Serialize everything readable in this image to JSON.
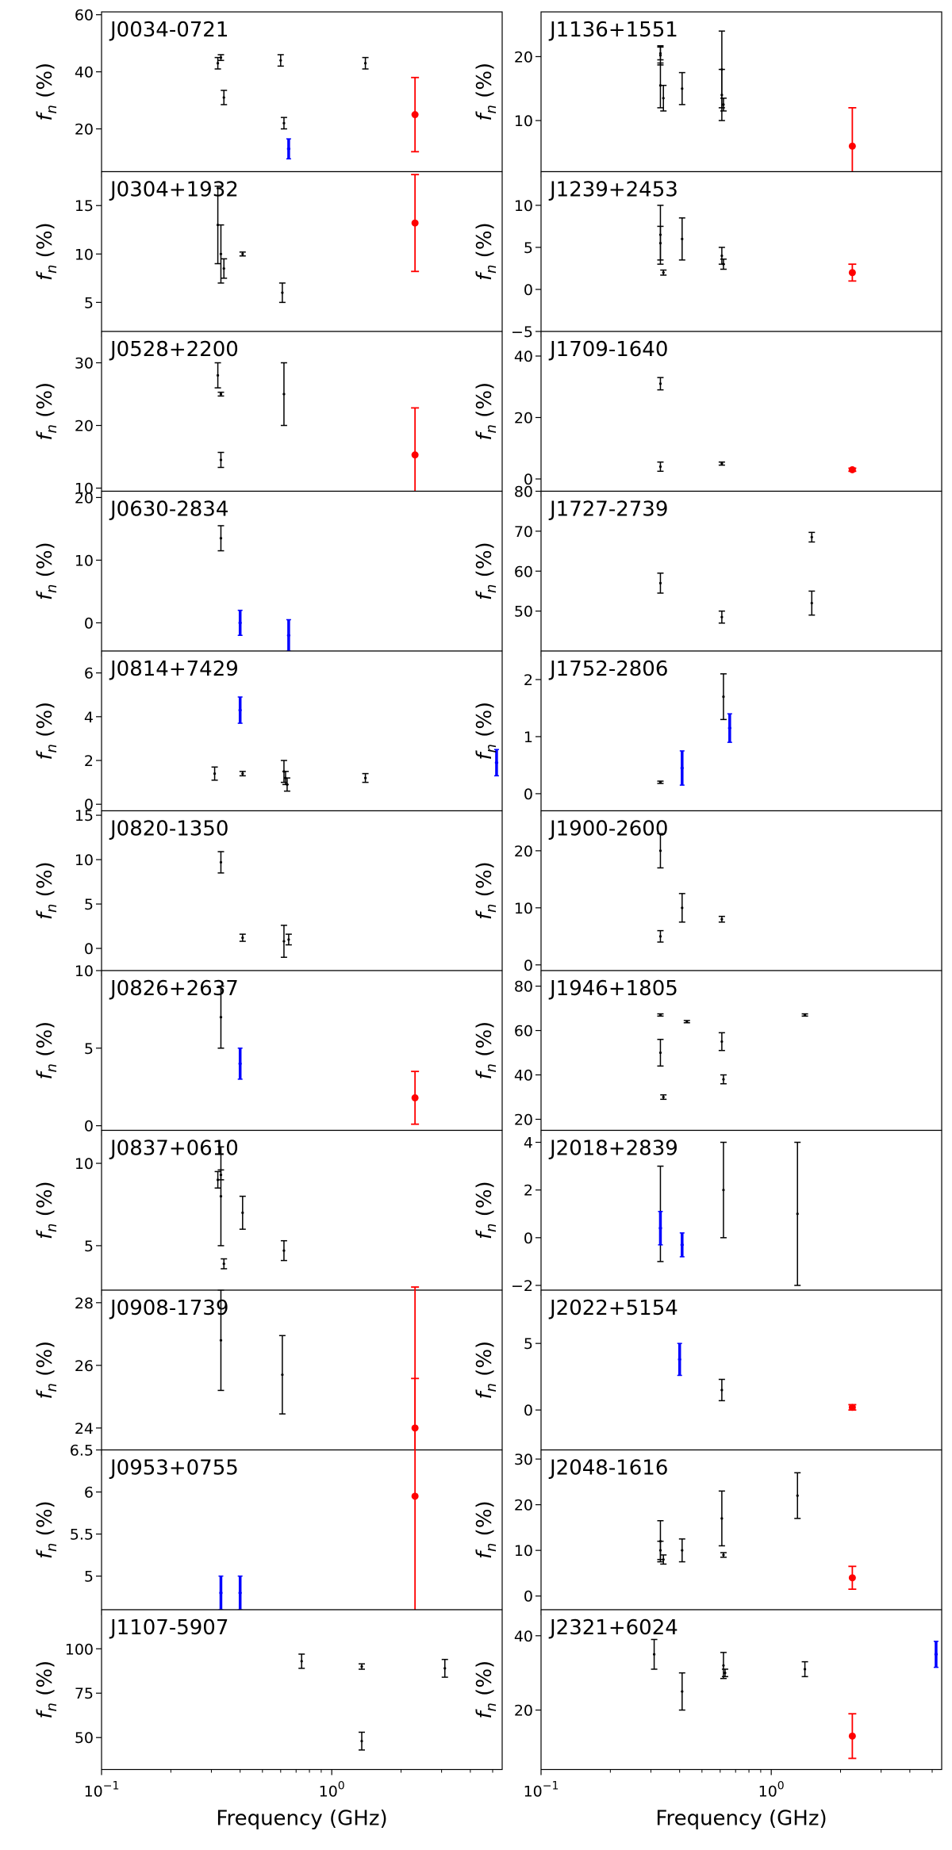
{
  "figure": {
    "y_axis_label": "f_n (%)",
    "x_axis_label": "Frequency (GHz)",
    "x_ticks": [
      0.1,
      1.0
    ],
    "x_tick_labels": [
      [
        "10",
        "−1"
      ],
      [
        "10",
        "0"
      ]
    ],
    "colors": {
      "measured": "#000000",
      "lower": "#0000ff",
      "estimate": "#ff0000"
    }
  },
  "chart_data": [
    {
      "type": "scatter",
      "panel": "J0034-0721",
      "column": 0,
      "xlim": [
        0.1,
        5.5
      ],
      "xscale": "log",
      "ylim": [
        5,
        61
      ],
      "yticks": [
        20,
        40,
        60
      ],
      "points": [
        [
          0.32,
          43,
          2,
          "black"
        ],
        [
          0.33,
          45,
          1,
          "black"
        ],
        [
          0.34,
          31,
          2.5,
          "black"
        ],
        [
          0.6,
          44,
          2,
          "black"
        ],
        [
          0.62,
          22,
          2,
          "black"
        ],
        [
          1.4,
          43,
          2,
          "black"
        ],
        [
          0.65,
          13,
          3.5,
          "blue"
        ],
        [
          2.3,
          25,
          13,
          "red"
        ]
      ]
    },
    {
      "type": "scatter",
      "panel": "J1136+1551",
      "column": 1,
      "xlim": [
        0.1,
        5.5
      ],
      "xscale": "log",
      "ylim": [
        2,
        27
      ],
      "yticks": [
        10,
        20
      ],
      "points": [
        [
          0.33,
          20.5,
          1,
          "black"
        ],
        [
          0.33,
          20.2,
          1.5,
          "black"
        ],
        [
          0.33,
          15.5,
          3.5,
          "black"
        ],
        [
          0.34,
          13.5,
          2,
          "black"
        ],
        [
          0.41,
          15,
          2.5,
          "black"
        ],
        [
          0.61,
          18,
          6,
          "black"
        ],
        [
          0.61,
          14,
          4,
          "black"
        ],
        [
          0.62,
          12.5,
          1,
          "black"
        ],
        [
          2.25,
          6,
          6,
          "red"
        ]
      ]
    },
    {
      "type": "scatter",
      "panel": "J0304+1932",
      "column": 0,
      "xlim": [
        0.1,
        5.5
      ],
      "xscale": "log",
      "ylim": [
        2,
        18.5
      ],
      "yticks": [
        5,
        10,
        15
      ],
      "points": [
        [
          0.32,
          13,
          4,
          "black"
        ],
        [
          0.33,
          10,
          3,
          "black"
        ],
        [
          0.34,
          8.5,
          1,
          "black"
        ],
        [
          0.41,
          10,
          0.2,
          "black"
        ],
        [
          0.61,
          6,
          1,
          "black"
        ],
        [
          2.3,
          13.2,
          5,
          "red"
        ]
      ]
    },
    {
      "type": "scatter",
      "panel": "J1239+2453",
      "column": 1,
      "xlim": [
        0.1,
        5.5
      ],
      "xscale": "log",
      "ylim": [
        -5,
        14
      ],
      "yticks": [
        -5,
        0,
        5,
        10
      ],
      "points": [
        [
          0.33,
          6.5,
          3.5,
          "black"
        ],
        [
          0.33,
          5.5,
          2,
          "black"
        ],
        [
          0.34,
          2,
          0.3,
          "black"
        ],
        [
          0.41,
          6,
          2.5,
          "black"
        ],
        [
          0.61,
          4,
          1,
          "black"
        ],
        [
          0.62,
          3,
          0.6,
          "black"
        ],
        [
          2.25,
          2,
          1,
          "red"
        ]
      ]
    },
    {
      "type": "scatter",
      "panel": "J0528+2200",
      "column": 0,
      "xlim": [
        0.1,
        5.5
      ],
      "xscale": "log",
      "ylim": [
        9.5,
        35
      ],
      "yticks": [
        10,
        20,
        30
      ],
      "points": [
        [
          0.32,
          28,
          2,
          "black"
        ],
        [
          0.33,
          25,
          0.3,
          "black"
        ],
        [
          0.33,
          14.5,
          1.2,
          "black"
        ],
        [
          0.62,
          25,
          5,
          "black"
        ],
        [
          2.3,
          15.3,
          7.5,
          "red"
        ]
      ]
    },
    {
      "type": "scatter",
      "panel": "J1709-1640",
      "column": 1,
      "xlim": [
        0.1,
        5.5
      ],
      "xscale": "log",
      "ylim": [
        -4,
        48
      ],
      "yticks": [
        0,
        20,
        40
      ],
      "points": [
        [
          0.33,
          31,
          2,
          "black"
        ],
        [
          0.33,
          4,
          1.5,
          "black"
        ],
        [
          0.61,
          5,
          0.5,
          "black"
        ],
        [
          2.25,
          3,
          0.5,
          "red"
        ]
      ]
    },
    {
      "type": "scatter",
      "panel": "J0630-2834",
      "column": 0,
      "xlim": [
        0.1,
        5.5
      ],
      "xscale": "log",
      "ylim": [
        -4.5,
        21
      ],
      "yticks": [
        0,
        10,
        20
      ],
      "points": [
        [
          0.33,
          13.5,
          2,
          "black"
        ],
        [
          0.4,
          0,
          2,
          "blue"
        ],
        [
          0.65,
          -2,
          2.5,
          "blue"
        ]
      ]
    },
    {
      "type": "scatter",
      "panel": "J1727-2739",
      "column": 1,
      "xlim": [
        0.1,
        5.5
      ],
      "xscale": "log",
      "ylim": [
        40,
        80
      ],
      "yticks": [
        50,
        60,
        70,
        80
      ],
      "points": [
        [
          0.33,
          57,
          2.5,
          "black"
        ],
        [
          0.61,
          48.5,
          1.5,
          "black"
        ],
        [
          1.5,
          68.5,
          1.2,
          "black"
        ],
        [
          1.5,
          52,
          3,
          "black"
        ]
      ]
    },
    {
      "type": "scatter",
      "panel": "J0814+7429",
      "column": 0,
      "xlim": [
        0.1,
        5.5
      ],
      "xscale": "log",
      "ylim": [
        -0.3,
        7
      ],
      "yticks": [
        0,
        2,
        4,
        6
      ],
      "points": [
        [
          0.31,
          1.4,
          0.3,
          "black"
        ],
        [
          0.41,
          1.4,
          0.1,
          "black"
        ],
        [
          0.62,
          1.5,
          0.5,
          "black"
        ],
        [
          0.63,
          1.2,
          0.3,
          "black"
        ],
        [
          0.64,
          0.9,
          0.3,
          "black"
        ],
        [
          1.4,
          1.2,
          0.2,
          "black"
        ],
        [
          0.4,
          4.3,
          0.6,
          "blue"
        ],
        [
          5.2,
          1.9,
          0.6,
          "blue"
        ]
      ]
    },
    {
      "type": "scatter",
      "panel": "J1752-2806",
      "column": 1,
      "xlim": [
        0.1,
        5.5
      ],
      "xscale": "log",
      "ylim": [
        -0.3,
        2.5
      ],
      "yticks": [
        0,
        1,
        2
      ],
      "points": [
        [
          0.33,
          0.2,
          0.02,
          "black"
        ],
        [
          0.62,
          1.7,
          0.4,
          "black"
        ],
        [
          0.41,
          0.45,
          0.3,
          "blue"
        ],
        [
          0.66,
          1.15,
          0.25,
          "blue"
        ]
      ]
    },
    {
      "type": "scatter",
      "panel": "J0820-1350",
      "column": 0,
      "xlim": [
        0.1,
        5.5
      ],
      "xscale": "log",
      "ylim": [
        -2.5,
        15.5
      ],
      "yticks": [
        0,
        5,
        10,
        15
      ],
      "points": [
        [
          0.33,
          9.7,
          1.2,
          "black"
        ],
        [
          0.41,
          1.2,
          0.4,
          "black"
        ],
        [
          0.62,
          0.8,
          1.8,
          "black"
        ],
        [
          0.65,
          1,
          0.6,
          "black"
        ]
      ]
    },
    {
      "type": "scatter",
      "panel": "J1900-2600",
      "column": 1,
      "xlim": [
        0.1,
        5.5
      ],
      "xscale": "log",
      "ylim": [
        -1,
        27
      ],
      "yticks": [
        0,
        10,
        20
      ],
      "points": [
        [
          0.33,
          20,
          3,
          "black"
        ],
        [
          0.33,
          5,
          1,
          "black"
        ],
        [
          0.41,
          10,
          2.5,
          "black"
        ],
        [
          0.61,
          8,
          0.5,
          "black"
        ]
      ]
    },
    {
      "type": "scatter",
      "panel": "J0826+2637",
      "column": 0,
      "xlim": [
        0.1,
        5.5
      ],
      "xscale": "log",
      "ylim": [
        -0.3,
        10
      ],
      "yticks": [
        0,
        5,
        10
      ],
      "points": [
        [
          0.33,
          7,
          2,
          "black"
        ],
        [
          0.4,
          4,
          1,
          "blue"
        ],
        [
          2.3,
          1.8,
          1.7,
          "red"
        ]
      ]
    },
    {
      "type": "scatter",
      "panel": "J1946+1805",
      "column": 1,
      "xlim": [
        0.1,
        5.5
      ],
      "xscale": "log",
      "ylim": [
        15,
        87
      ],
      "yticks": [
        20,
        40,
        60,
        80
      ],
      "points": [
        [
          0.33,
          67,
          0.5,
          "black"
        ],
        [
          0.33,
          50,
          6,
          "black"
        ],
        [
          0.34,
          30,
          1,
          "black"
        ],
        [
          0.43,
          64,
          0.5,
          "black"
        ],
        [
          0.61,
          55,
          4,
          "black"
        ],
        [
          0.62,
          38,
          2,
          "black"
        ],
        [
          1.4,
          67,
          0.5,
          "black"
        ]
      ]
    },
    {
      "type": "scatter",
      "panel": "J0837+0610",
      "column": 0,
      "xlim": [
        0.1,
        5.5
      ],
      "xscale": "log",
      "ylim": [
        2.3,
        12
      ],
      "yticks": [
        5,
        10
      ],
      "points": [
        [
          0.32,
          9,
          0.5,
          "black"
        ],
        [
          0.33,
          8,
          3,
          "black"
        ],
        [
          0.33,
          9.3,
          0.3,
          "black"
        ],
        [
          0.34,
          3.9,
          0.3,
          "black"
        ],
        [
          0.41,
          7,
          1,
          "black"
        ],
        [
          0.62,
          4.7,
          0.6,
          "black"
        ]
      ]
    },
    {
      "type": "scatter",
      "panel": "J2018+2839",
      "column": 1,
      "xlim": [
        0.1,
        5.5
      ],
      "xscale": "log",
      "ylim": [
        -2.2,
        4.5
      ],
      "yticks": [
        -2,
        0,
        2,
        4
      ],
      "points": [
        [
          0.33,
          1,
          2,
          "black"
        ],
        [
          0.62,
          2,
          2,
          "black"
        ],
        [
          1.3,
          1,
          3,
          "black"
        ],
        [
          0.33,
          0.4,
          0.7,
          "blue"
        ],
        [
          0.41,
          -0.3,
          0.5,
          "blue"
        ]
      ]
    },
    {
      "type": "scatter",
      "panel": "J0908-1739",
      "column": 0,
      "xlim": [
        0.1,
        5.5
      ],
      "xscale": "log",
      "ylim": [
        23.3,
        28.4
      ],
      "yticks": [
        24,
        26,
        28
      ],
      "points": [
        [
          0.33,
          26.8,
          1.6,
          "black"
        ],
        [
          0.61,
          25.7,
          1.25,
          "black"
        ],
        [
          2.3,
          24,
          4.5,
          "red"
        ]
      ]
    },
    {
      "type": "scatter",
      "panel": "J2022+5154",
      "column": 1,
      "xlim": [
        0.1,
        5.5
      ],
      "xscale": "log",
      "ylim": [
        -3,
        9
      ],
      "yticks": [
        0,
        5
      ],
      "points": [
        [
          0.61,
          1.5,
          0.8,
          "black"
        ],
        [
          0.4,
          3.8,
          1.2,
          "blue"
        ],
        [
          2.25,
          0.2,
          0.2,
          "red"
        ]
      ]
    },
    {
      "type": "scatter",
      "panel": "J0953+0755",
      "column": 0,
      "xlim": [
        0.1,
        5.5
      ],
      "xscale": "log",
      "ylim": [
        4.6,
        6.5
      ],
      "yticks": [
        5.0,
        5.5,
        6.0,
        6.5
      ],
      "points": [
        [
          0.33,
          4.8,
          0.2,
          "blue"
        ],
        [
          0.4,
          4.8,
          0.2,
          "blue"
        ],
        [
          2.3,
          5.95,
          1.4,
          "red"
        ]
      ]
    },
    {
      "type": "scatter",
      "panel": "J2048-1616",
      "column": 1,
      "xlim": [
        0.1,
        5.5
      ],
      "xscale": "log",
      "ylim": [
        -3,
        32
      ],
      "yticks": [
        0,
        10,
        20,
        30
      ],
      "points": [
        [
          0.33,
          12,
          4.5,
          "black"
        ],
        [
          0.33,
          10,
          2,
          "black"
        ],
        [
          0.34,
          8,
          1,
          "black"
        ],
        [
          0.41,
          10,
          2.5,
          "black"
        ],
        [
          0.61,
          17,
          6,
          "black"
        ],
        [
          0.62,
          9,
          0.5,
          "black"
        ],
        [
          1.3,
          22,
          5,
          "black"
        ],
        [
          2.25,
          4,
          2.5,
          "red"
        ]
      ]
    },
    {
      "type": "scatter",
      "panel": "J1107-5907",
      "column": 0,
      "xlim": [
        0.1,
        5.5
      ],
      "xscale": "log",
      "ylim": [
        32,
        122
      ],
      "yticks": [
        50,
        75,
        100
      ],
      "points": [
        [
          0.74,
          93,
          4,
          "black"
        ],
        [
          1.35,
          90,
          1.5,
          "black"
        ],
        [
          1.35,
          48,
          5,
          "black"
        ],
        [
          3.1,
          89,
          5,
          "black"
        ]
      ]
    },
    {
      "type": "scatter",
      "panel": "J2321+6024",
      "column": 1,
      "xlim": [
        0.1,
        5.5
      ],
      "xscale": "log",
      "ylim": [
        4,
        47
      ],
      "yticks": [
        20,
        40
      ],
      "points": [
        [
          0.31,
          35,
          4,
          "black"
        ],
        [
          0.41,
          25,
          5,
          "black"
        ],
        [
          0.62,
          32,
          3.5,
          "black"
        ],
        [
          0.63,
          30,
          1,
          "black"
        ],
        [
          1.4,
          31,
          2,
          "black"
        ],
        [
          5.2,
          35,
          3.5,
          "blue"
        ],
        [
          2.25,
          13,
          6,
          "red"
        ]
      ]
    }
  ]
}
